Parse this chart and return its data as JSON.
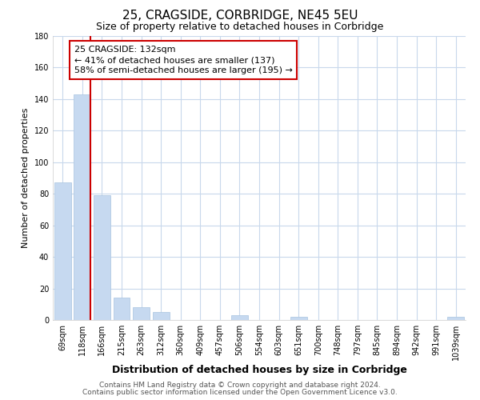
{
  "title": "25, CRAGSIDE, CORBRIDGE, NE45 5EU",
  "subtitle": "Size of property relative to detached houses in Corbridge",
  "xlabel": "Distribution of detached houses by size in Corbridge",
  "ylabel": "Number of detached properties",
  "bar_labels": [
    "69sqm",
    "118sqm",
    "166sqm",
    "215sqm",
    "263sqm",
    "312sqm",
    "360sqm",
    "409sqm",
    "457sqm",
    "506sqm",
    "554sqm",
    "603sqm",
    "651sqm",
    "700sqm",
    "748sqm",
    "797sqm",
    "845sqm",
    "894sqm",
    "942sqm",
    "991sqm",
    "1039sqm"
  ],
  "bar_values": [
    87,
    143,
    79,
    14,
    8,
    5,
    0,
    0,
    0,
    3,
    0,
    0,
    2,
    0,
    0,
    0,
    0,
    0,
    0,
    0,
    2
  ],
  "bar_color": "#c6d9f0",
  "bar_edge_color": "#a8c4e0",
  "annotation_text": "25 CRAGSIDE: 132sqm\n← 41% of detached houses are smaller (137)\n58% of semi-detached houses are larger (195) →",
  "annotation_box_color": "#ffffff",
  "annotation_box_edge": "#cc0000",
  "red_line_color": "#cc0000",
  "ylim": [
    0,
    180
  ],
  "yticks": [
    0,
    20,
    40,
    60,
    80,
    100,
    120,
    140,
    160,
    180
  ],
  "footer_line1": "Contains HM Land Registry data © Crown copyright and database right 2024.",
  "footer_line2": "Contains public sector information licensed under the Open Government Licence v3.0.",
  "background_color": "#ffffff",
  "grid_color": "#c8d8ec",
  "title_fontsize": 11,
  "subtitle_fontsize": 9,
  "xlabel_fontsize": 9,
  "ylabel_fontsize": 8,
  "tick_fontsize": 7,
  "annotation_fontsize": 8,
  "footer_fontsize": 6.5
}
